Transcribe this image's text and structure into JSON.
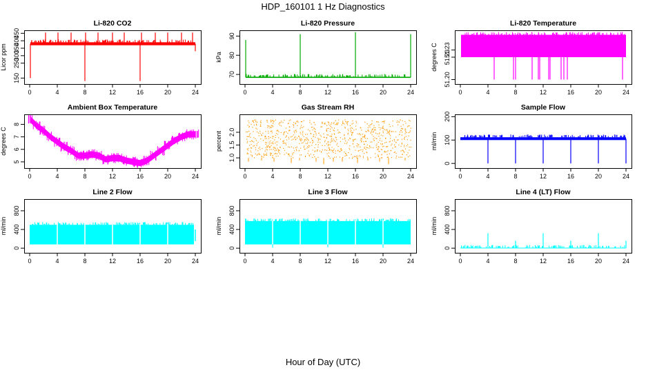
{
  "title": "HDP_160101  1 Hz Diagnostics",
  "xlabel": "Hour of Day (UTC)",
  "chart_data": [
    {
      "type": "line",
      "title": "Li-820 CO2",
      "ylabel": "Licor ppm",
      "color": "#ff0000",
      "xlim": [
        0,
        24
      ],
      "ylim": [
        110,
        470
      ],
      "xticks": [
        "0",
        "4",
        "8",
        "12",
        "16",
        "20",
        "24"
      ],
      "yticks": [
        {
          "v": 150,
          "t": "150"
        },
        {
          "v": 250,
          "t": "250"
        },
        {
          "v": 300,
          "t": "300"
        },
        {
          "v": 350,
          "t": "350"
        },
        {
          "v": 400,
          "t": "400"
        },
        {
          "v": 450,
          "t": "450"
        }
      ],
      "band": {
        "x": [
          0.1,
          24
        ],
        "low": 370,
        "high": 390
      },
      "spikes": [
        {
          "x": 0.1,
          "y": 150
        },
        {
          "x": 0.2,
          "y": 380
        },
        {
          "x": 2.3,
          "y": 455
        },
        {
          "x": 4.1,
          "y": 455
        },
        {
          "x": 6.0,
          "y": 455
        },
        {
          "x": 8.0,
          "y": 130
        },
        {
          "x": 8.1,
          "y": 455
        },
        {
          "x": 9.9,
          "y": 455
        },
        {
          "x": 12.0,
          "y": 455
        },
        {
          "x": 13.7,
          "y": 455
        },
        {
          "x": 16.0,
          "y": 130
        },
        {
          "x": 16.2,
          "y": 455
        },
        {
          "x": 18.2,
          "y": 455
        },
        {
          "x": 20.0,
          "y": 455
        },
        {
          "x": 22.0,
          "y": 455
        },
        {
          "x": 23.6,
          "y": 455
        },
        {
          "x": 24.0,
          "y": 330
        }
      ]
    },
    {
      "type": "line",
      "title": "Li-820 Pressure",
      "ylabel": "kPa",
      "color": "#00aa00",
      "xlim": [
        0,
        24
      ],
      "ylim": [
        65,
        93
      ],
      "xticks": [
        "0",
        "4",
        "8",
        "12",
        "16",
        "20",
        "24"
      ],
      "yticks": [
        {
          "v": 70,
          "t": "70"
        },
        {
          "v": 80,
          "t": "80"
        },
        {
          "v": 90,
          "t": "90"
        }
      ],
      "band": {
        "x": [
          0.1,
          24
        ],
        "low": 68.2,
        "high": 68.8
      },
      "spikes": [
        {
          "x": 0.1,
          "y": 88
        },
        {
          "x": 8.0,
          "y": 91
        },
        {
          "x": 16.0,
          "y": 92
        },
        {
          "x": 24.0,
          "y": 91
        }
      ]
    },
    {
      "type": "line",
      "title": "Li-820 Temperature",
      "ylabel": "degrees C",
      "color": "#ff00ff",
      "xlim": [
        0,
        24
      ],
      "ylim": [
        51.195,
        51.255
      ],
      "xticks": [
        "0",
        "4",
        "8",
        "12",
        "16",
        "20",
        "24"
      ],
      "yticks": [
        {
          "v": 51.2,
          "t": "51.20"
        },
        {
          "v": 51.225,
          "t": "51.23"
        },
        {
          "v": 51.233,
          "t": "51.23"
        }
      ],
      "band": {
        "x": [
          0.1,
          24
        ],
        "low": 51.225,
        "high": 51.25
      },
      "spikes": [
        {
          "x": 4.9,
          "y": 51.2
        },
        {
          "x": 7.7,
          "y": 51.2
        },
        {
          "x": 8.0,
          "y": 51.2
        },
        {
          "x": 10.4,
          "y": 51.2
        },
        {
          "x": 11.3,
          "y": 51.2
        },
        {
          "x": 11.5,
          "y": 51.2
        },
        {
          "x": 12.8,
          "y": 51.2
        },
        {
          "x": 13.0,
          "y": 51.2
        },
        {
          "x": 14.6,
          "y": 51.2
        },
        {
          "x": 15.0,
          "y": 51.2
        },
        {
          "x": 15.5,
          "y": 51.2
        },
        {
          "x": 23.5,
          "y": 51.2
        }
      ]
    },
    {
      "type": "line",
      "title": "Ambient Box Temperature",
      "ylabel": "degrees C",
      "color": "#ff00ff",
      "xlim": [
        0,
        24
      ],
      "ylim": [
        4.5,
        8.8
      ],
      "xticks": [
        "0",
        "4",
        "8",
        "12",
        "16",
        "20",
        "24"
      ],
      "yticks": [
        {
          "v": 5,
          "t": "5"
        },
        {
          "v": 6,
          "t": "6"
        },
        {
          "v": 7,
          "t": "7"
        },
        {
          "v": 8,
          "t": "8"
        }
      ],
      "curve": [
        {
          "x": 0.1,
          "y": 8.4
        },
        {
          "x": 1,
          "y": 7.9
        },
        {
          "x": 2,
          "y": 7.5
        },
        {
          "x": 3,
          "y": 7.0
        },
        {
          "x": 4,
          "y": 6.6
        },
        {
          "x": 5,
          "y": 6.2
        },
        {
          "x": 6,
          "y": 5.9
        },
        {
          "x": 7,
          "y": 5.5
        },
        {
          "x": 8,
          "y": 5.5
        },
        {
          "x": 9,
          "y": 5.6
        },
        {
          "x": 10,
          "y": 5.5
        },
        {
          "x": 11,
          "y": 5.2
        },
        {
          "x": 12,
          "y": 5.3
        },
        {
          "x": 13,
          "y": 5.3
        },
        {
          "x": 14,
          "y": 5.1
        },
        {
          "x": 15,
          "y": 5.0
        },
        {
          "x": 16,
          "y": 4.9
        },
        {
          "x": 17,
          "y": 5.1
        },
        {
          "x": 18,
          "y": 5.5
        },
        {
          "x": 19,
          "y": 5.9
        },
        {
          "x": 20,
          "y": 6.3
        },
        {
          "x": 21,
          "y": 6.7
        },
        {
          "x": 22,
          "y": 7.0
        },
        {
          "x": 23,
          "y": 7.2
        },
        {
          "x": 24,
          "y": 7.2
        }
      ],
      "thickness": 0.5
    },
    {
      "type": "scatter",
      "title": "Gas Stream RH",
      "ylabel": "percent",
      "color": "#ff9900",
      "xlim": [
        0,
        24
      ],
      "ylim": [
        0.6,
        2.7
      ],
      "xticks": [
        "0",
        "4",
        "8",
        "12",
        "16",
        "20",
        "24"
      ],
      "yticks": [
        {
          "v": 1.0,
          "t": "1.0"
        },
        {
          "v": 1.5,
          "t": "1.5"
        },
        {
          "v": 2.0,
          "t": "2.0"
        }
      ],
      "band": {
        "x": [
          0.1,
          24
        ],
        "low": 1.0,
        "high": 2.5
      },
      "low_extremes": [
        {
          "x": 0.5,
          "y": 0.85
        },
        {
          "x": 2.4,
          "y": 0.9
        },
        {
          "x": 4.2,
          "y": 0.85
        },
        {
          "x": 6.7,
          "y": 0.8
        },
        {
          "x": 7.9,
          "y": 0.9
        },
        {
          "x": 10.3,
          "y": 0.85
        },
        {
          "x": 11.4,
          "y": 0.75
        },
        {
          "x": 12.8,
          "y": 0.85
        },
        {
          "x": 14.1,
          "y": 0.85
        },
        {
          "x": 16.3,
          "y": 0.8
        },
        {
          "x": 17.8,
          "y": 0.9
        },
        {
          "x": 19.5,
          "y": 0.85
        },
        {
          "x": 20.8,
          "y": 0.75
        },
        {
          "x": 23.2,
          "y": 0.9
        }
      ]
    },
    {
      "type": "line",
      "title": "Sample Flow",
      "ylabel": "ml/min",
      "color": "#0000ff",
      "xlim": [
        0,
        24
      ],
      "ylim": [
        -20,
        210
      ],
      "xticks": [
        "0",
        "4",
        "8",
        "12",
        "16",
        "20",
        "24"
      ],
      "yticks": [
        {
          "v": 0,
          "t": "0"
        },
        {
          "v": 100,
          "t": "100"
        },
        {
          "v": 200,
          "t": "200"
        }
      ],
      "band": {
        "x": [
          0,
          24
        ],
        "low": 100,
        "high": 112
      },
      "spikes": [
        {
          "x": 4.0,
          "y": 0
        },
        {
          "x": 8.0,
          "y": 0
        },
        {
          "x": 12.0,
          "y": 0
        },
        {
          "x": 16.0,
          "y": 0
        },
        {
          "x": 20.0,
          "y": 0
        },
        {
          "x": 24.0,
          "y": 0
        }
      ]
    },
    {
      "type": "area",
      "title": "Line 2 Flow",
      "ylabel": "ml/min",
      "color": "#00ffff",
      "xlim": [
        0,
        24
      ],
      "ylim": [
        -100,
        1050
      ],
      "xticks": [
        "0",
        "4",
        "8",
        "12",
        "16",
        "20",
        "24"
      ],
      "yticks": [
        {
          "v": 0,
          "t": "0"
        },
        {
          "v": 400,
          "t": "400"
        },
        {
          "v": 800,
          "t": "800"
        }
      ],
      "band": {
        "x": [
          0,
          23.8
        ],
        "low": 80,
        "high": 500
      },
      "gaps": [
        4.0,
        8.0,
        12.0,
        16.0,
        20.0
      ],
      "end_segment": {
        "x": 24.0,
        "low": 150,
        "high": 400
      }
    },
    {
      "type": "area",
      "title": "Line 3 Flow",
      "ylabel": "ml/min",
      "color": "#00ffff",
      "xlim": [
        0,
        24
      ],
      "ylim": [
        -100,
        1050
      ],
      "xticks": [
        "0",
        "4",
        "8",
        "12",
        "16",
        "20",
        "24"
      ],
      "yticks": [
        {
          "v": 0,
          "t": "0"
        },
        {
          "v": 400,
          "t": "400"
        },
        {
          "v": 800,
          "t": "800"
        }
      ],
      "band": {
        "x": [
          0,
          24
        ],
        "low": 80,
        "high": 580
      },
      "gaps": [
        4.0,
        8.0,
        12.0,
        16.0,
        20.0
      ],
      "dips": [
        {
          "x": 4.0,
          "y": 10
        },
        {
          "x": 12.0,
          "y": 20
        },
        {
          "x": 20.0,
          "y": 10
        }
      ]
    },
    {
      "type": "line",
      "title": "Line 4 (LT) Flow",
      "ylabel": "ml/min",
      "color": "#00ffff",
      "xlim": [
        0,
        24
      ],
      "ylim": [
        -100,
        1050
      ],
      "xticks": [
        "0",
        "4",
        "8",
        "12",
        "16",
        "20",
        "24"
      ],
      "yticks": [
        {
          "v": 0,
          "t": "0"
        },
        {
          "v": 400,
          "t": "400"
        },
        {
          "v": 800,
          "t": "800"
        }
      ],
      "band": {
        "x": [
          0,
          24
        ],
        "low": 0,
        "high": 10
      },
      "spikes": [
        {
          "x": 4.0,
          "y": 320
        },
        {
          "x": 8.0,
          "y": 160
        },
        {
          "x": 12.0,
          "y": 320
        },
        {
          "x": 16.0,
          "y": 160
        },
        {
          "x": 20.0,
          "y": 320
        },
        {
          "x": 24.0,
          "y": 160
        }
      ]
    }
  ]
}
